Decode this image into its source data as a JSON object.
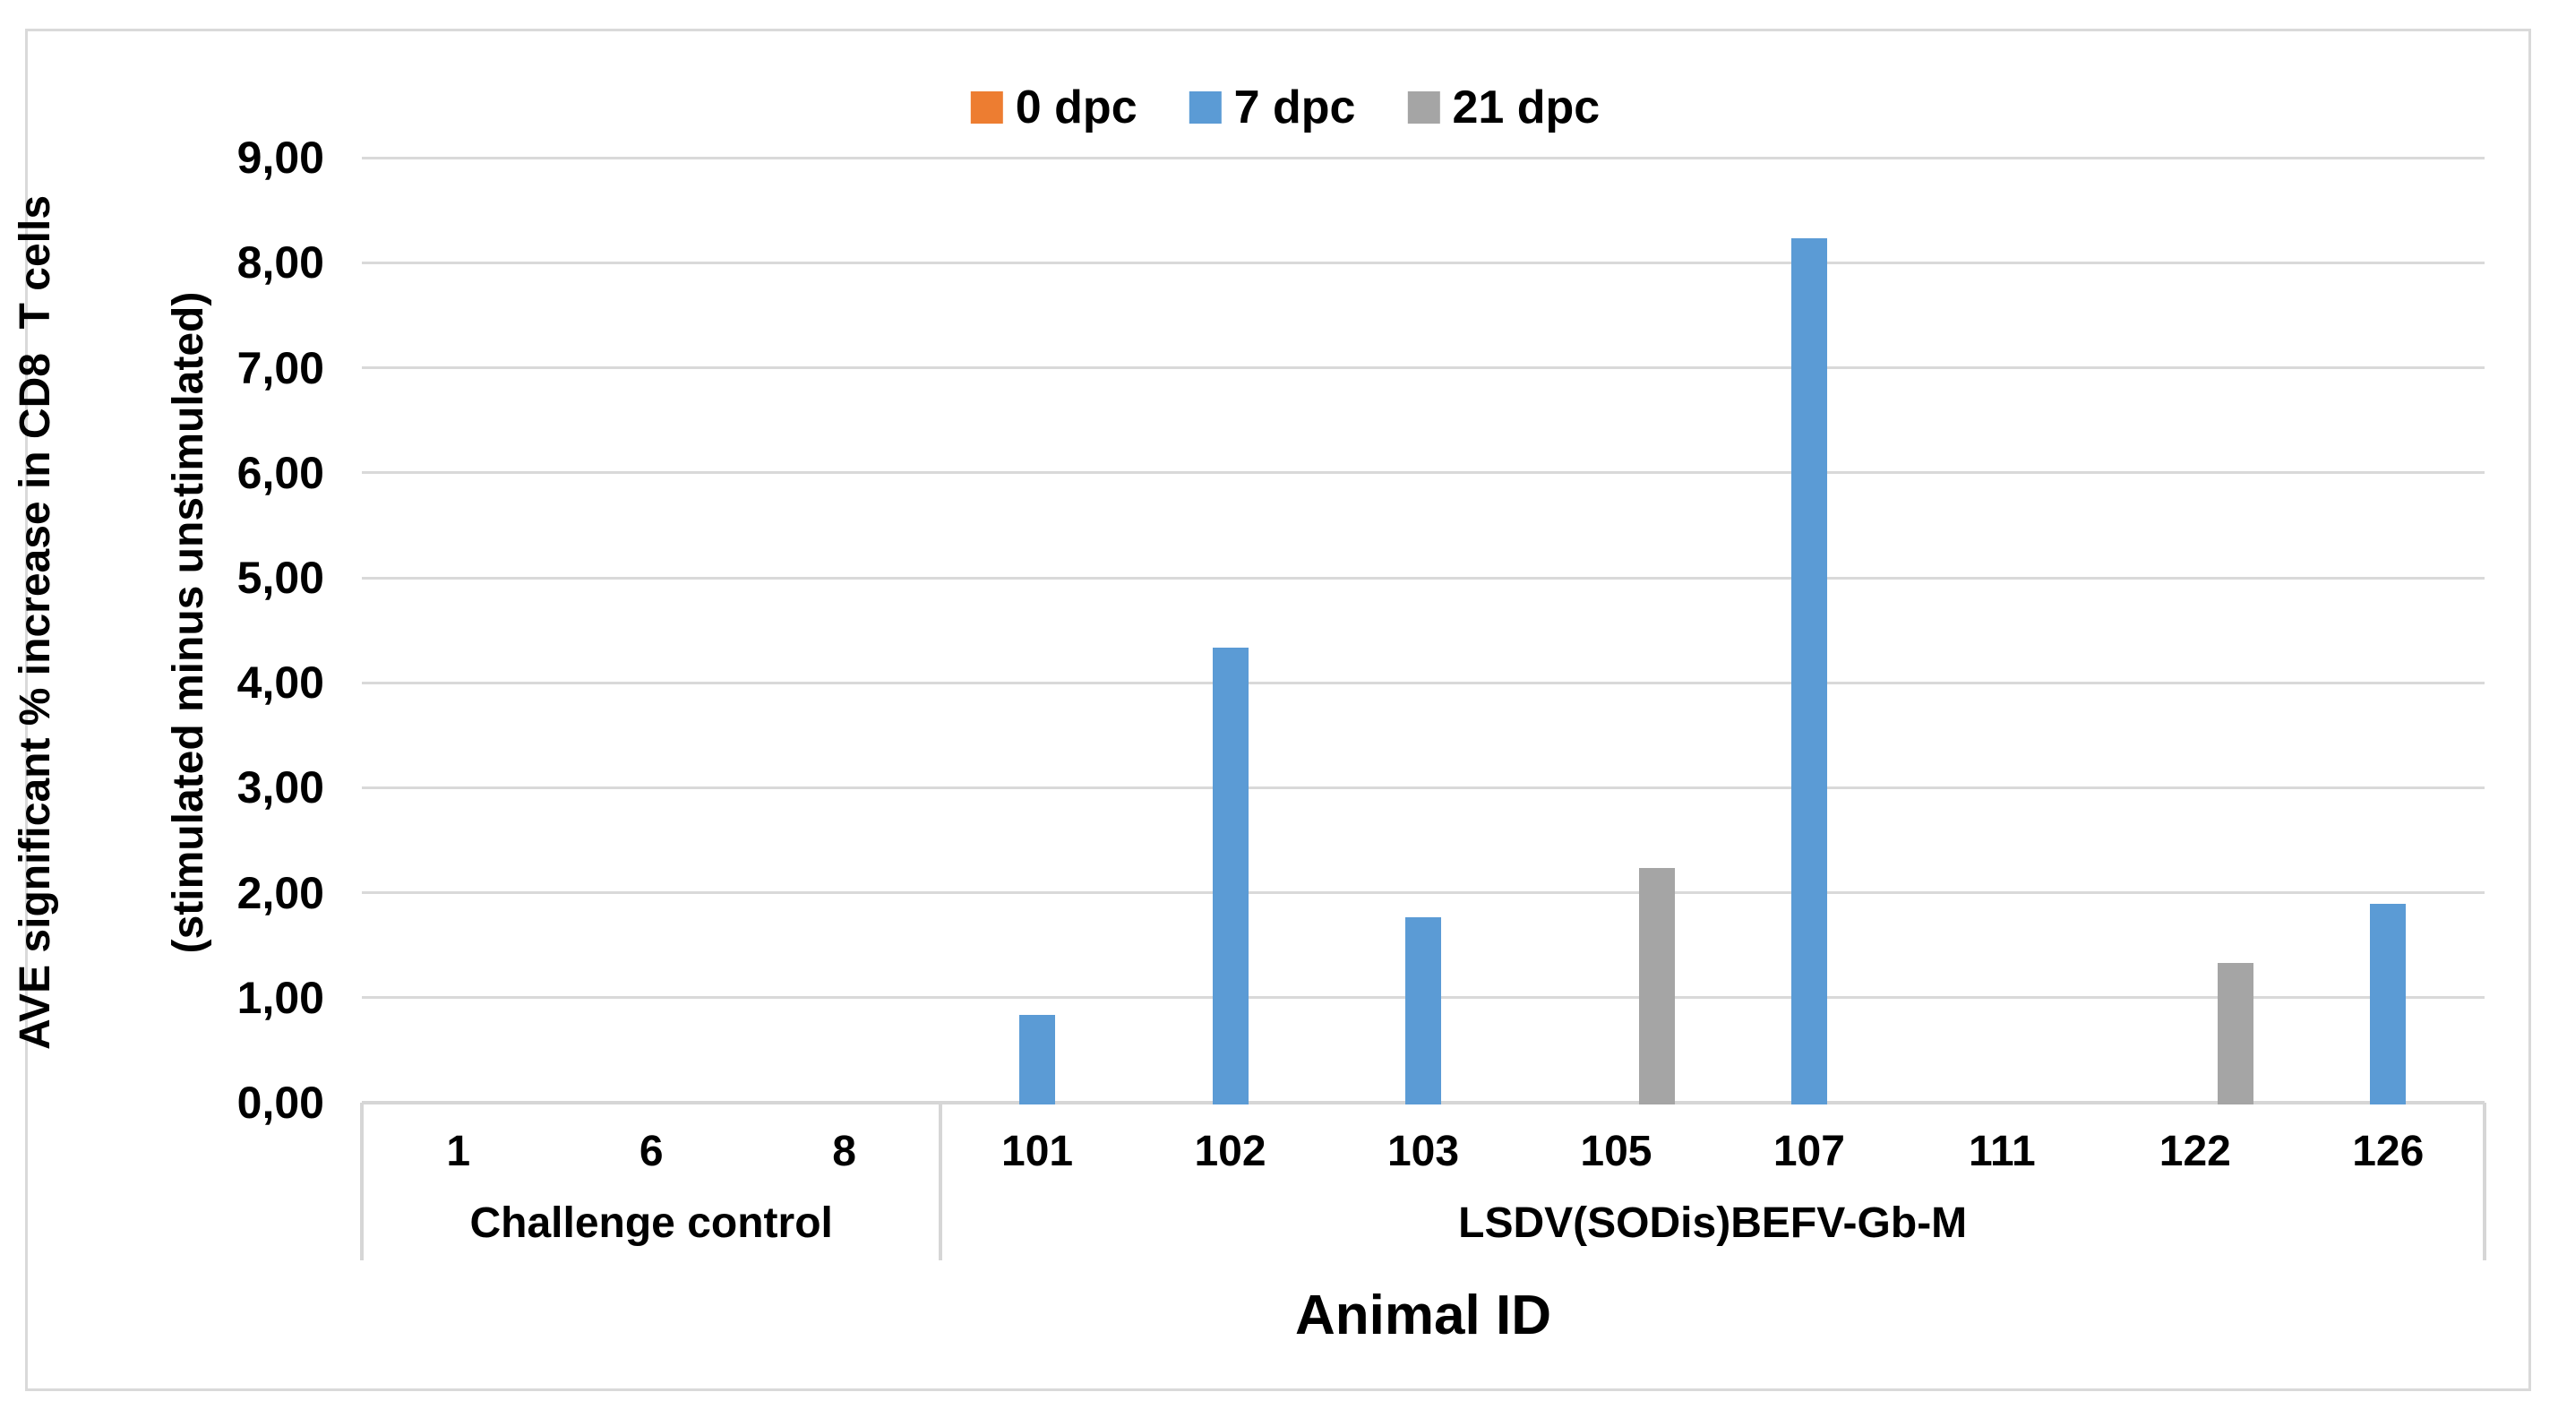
{
  "chart_data": {
    "type": "bar",
    "title": "",
    "xlabel": "Animal ID",
    "ylabel_line1": "AVE significant % increase in CD8  T cells",
    "ylabel_line2": "(stimulated minus unstimulated)",
    "ylim": [
      0,
      9
    ],
    "ytick_step": 1,
    "ytick_labels": [
      "0,00",
      "1,00",
      "2,00",
      "3,00",
      "4,00",
      "5,00",
      "6,00",
      "7,00",
      "8,00",
      "9,00"
    ],
    "decimal_separator": ",",
    "grid": true,
    "legend_position": "top-center",
    "categories": [
      "1",
      "6",
      "8",
      "101",
      "102",
      "103",
      "105",
      "107",
      "111",
      "122",
      "126"
    ],
    "groups": [
      {
        "label": "Challenge control",
        "span": [
          0,
          2
        ]
      },
      {
        "label": "LSDV(SODis)BEFV-Gb-M",
        "span": [
          3,
          10
        ]
      }
    ],
    "series": [
      {
        "name": "0 dpc",
        "color": "#ED7D31",
        "values": [
          0,
          0,
          0,
          0,
          0,
          0,
          0,
          0,
          0,
          0,
          0
        ]
      },
      {
        "name": "7 dpc",
        "color": "#5B9BD5",
        "values": [
          0,
          0,
          0,
          0.85,
          4.35,
          1.78,
          0,
          8.25,
          0,
          0,
          1.91
        ]
      },
      {
        "name": "21 dpc",
        "color": "#A5A5A5",
        "values": [
          0,
          0,
          0,
          0,
          0,
          0,
          2.25,
          0,
          0,
          1.35,
          0
        ]
      }
    ],
    "colors": {
      "gridline": "#D9D9D9",
      "axis_line": "#D6D6D6",
      "text": "#000000",
      "background": "#FFFFFF"
    }
  }
}
